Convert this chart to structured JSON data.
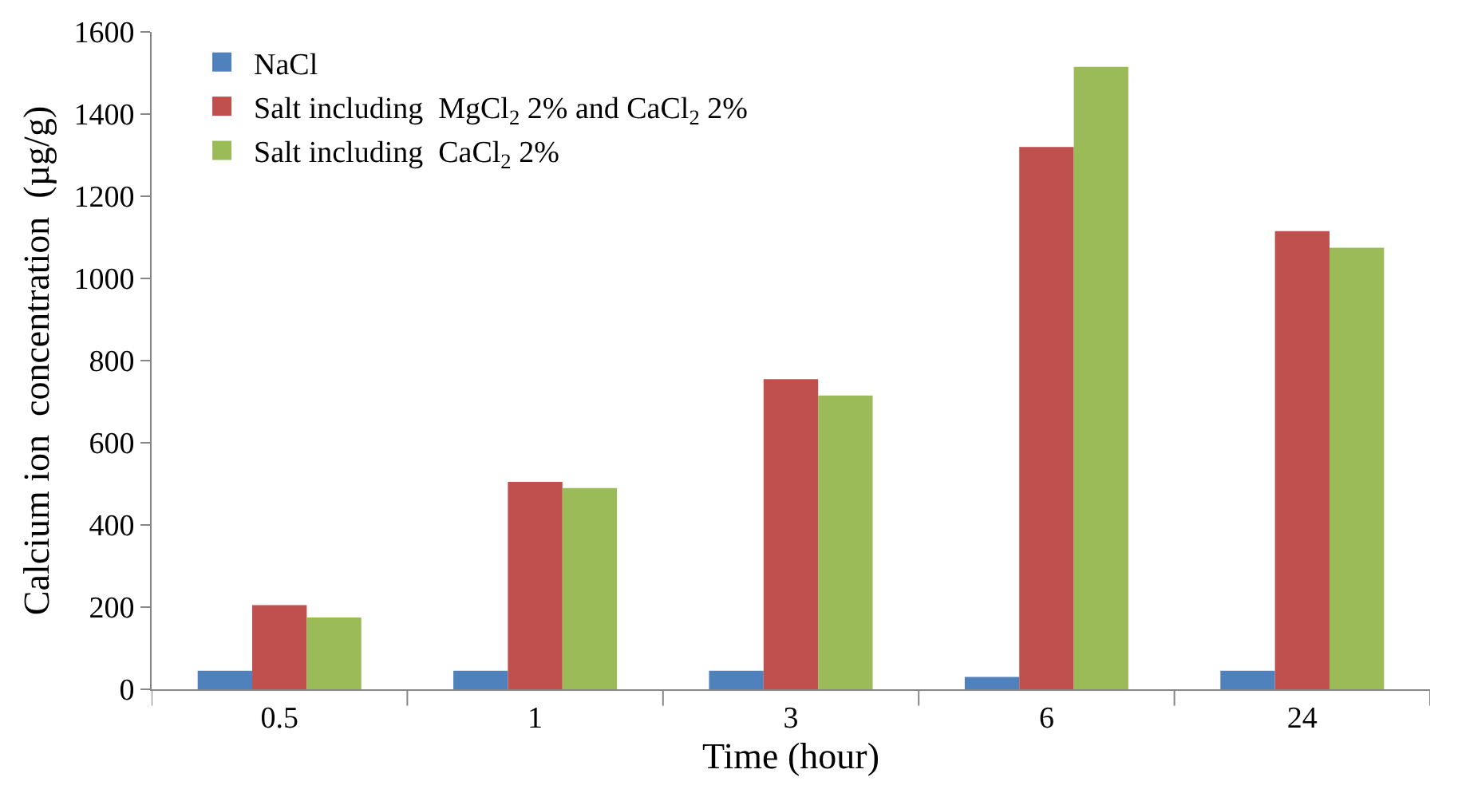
{
  "chart_data": {
    "type": "bar",
    "xlabel": "Time (hour)",
    "ylabel": "Calcium ion  concentration  (µg/g)",
    "categories": [
      "0.5",
      "1",
      "3",
      "6",
      "24"
    ],
    "series": [
      {
        "name": "NaCl",
        "color": "#4f81bd",
        "values": [
          45,
          45,
          45,
          30,
          45
        ]
      },
      {
        "name": "Salt including  MgCl$_{2}$ 2% and CaCl$_{2}$ 2%",
        "color": "#c0504d",
        "values": [
          205,
          505,
          755,
          1320,
          1115
        ]
      },
      {
        "name": "Salt including  CaCl$_{2}$ 2%",
        "color": "#9bbb59",
        "values": [
          175,
          490,
          715,
          1515,
          1075
        ]
      }
    ],
    "ylim": [
      0,
      1600
    ],
    "yticks": [
      0,
      200,
      400,
      600,
      800,
      1000,
      1200,
      1400,
      1600
    ],
    "grid": false,
    "legend": "top left"
  }
}
